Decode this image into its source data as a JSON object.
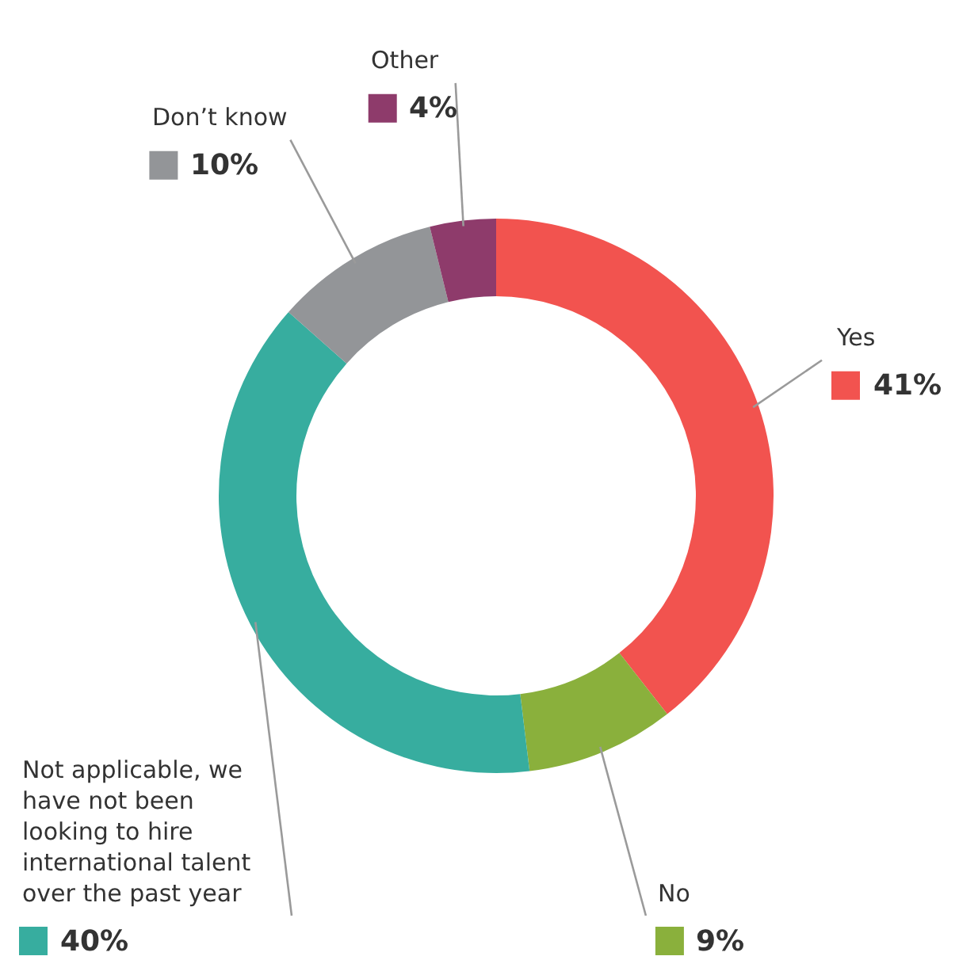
{
  "chart_data": {
    "type": "donut",
    "categories": [
      "Yes",
      "No",
      "Not applicable, we have not been looking to hire international talent over the past year",
      "Don’t know",
      "Other"
    ],
    "values": [
      41,
      9,
      40,
      10,
      4
    ],
    "colors": [
      "#f2534f",
      "#8ab03c",
      "#37ad9f",
      "#939598",
      "#8e3b6b"
    ],
    "value_labels": [
      "41%",
      "9%",
      "40%",
      "10%",
      "4%"
    ],
    "legend": false
  }
}
